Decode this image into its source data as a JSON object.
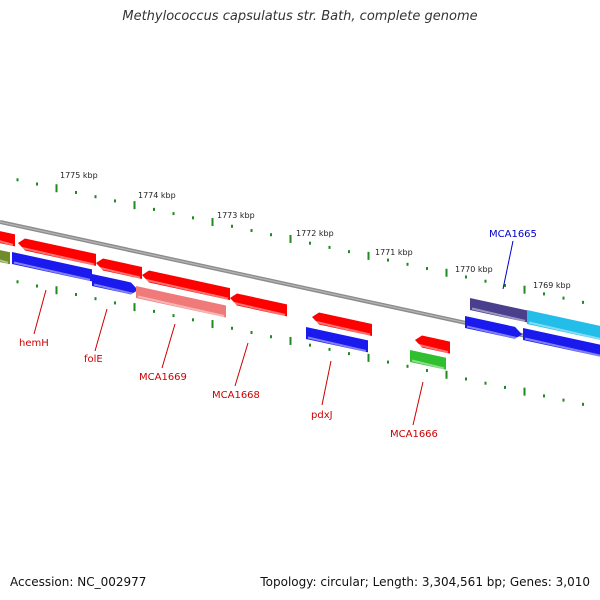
{
  "title": "Methylococcus capsulatus str. Bath, complete genome",
  "accession_label": "Accession: NC_002977",
  "topology_label": "Topology: circular; Length: 3,304,561 bp; Genes: 3,010",
  "colors": {
    "backbone": "#8c8c8c",
    "tick": "#1f8a1f",
    "red": "#ff0000",
    "blue": "#1a1aee",
    "pink": "#f07a7a",
    "olive": "#6e8c2a",
    "green": "#2fbf2f",
    "navy": "#4a3f8c",
    "cyan": "#22bde8",
    "label_red": "#cc0000",
    "label_blue": "#0000cc"
  },
  "scale_labels": [
    "1775 kbp",
    "1774 kbp",
    "1773 kbp",
    "1772 kbp",
    "1771 kbp",
    "1770 kbp",
    "1769 kbp"
  ],
  "genes": [
    {
      "id": "MCA1665",
      "label": "MCA1665",
      "label_color": "label_blue",
      "callout": "above"
    },
    {
      "id": "hemH",
      "label": "hemH",
      "label_color": "label_red",
      "callout": "below"
    },
    {
      "id": "folE",
      "label": "folE",
      "label_color": "label_red",
      "callout": "below"
    },
    {
      "id": "MCA1669",
      "label": "MCA1669",
      "label_color": "label_red",
      "callout": "below"
    },
    {
      "id": "MCA1668",
      "label": "MCA1668",
      "label_color": "label_red",
      "callout": "below"
    },
    {
      "id": "pdxJ",
      "label": "pdxJ",
      "label_color": "label_red",
      "callout": "below"
    },
    {
      "id": "MCA1666",
      "label": "MCA1666",
      "label_color": "label_red",
      "callout": "below"
    }
  ]
}
